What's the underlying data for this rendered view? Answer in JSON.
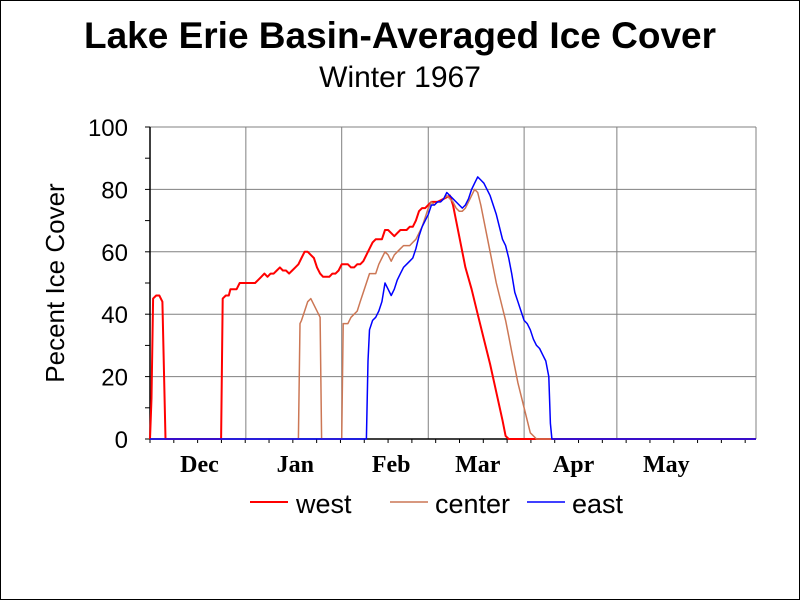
{
  "chart_data": {
    "type": "line",
    "title": "Lake Erie Basin-Averaged Ice Cover",
    "subtitle": "Winter 1967",
    "ylabel": "Pecent Ice Cover",
    "xlabel": "",
    "ylim": [
      0,
      100
    ],
    "yticks": [
      0,
      20,
      40,
      60,
      80,
      100
    ],
    "x_start": "Nov 15",
    "xlim": [
      0,
      196
    ],
    "xticks": [
      {
        "label": "Dec",
        "x": 16
      },
      {
        "label": "Jan",
        "x": 47
      },
      {
        "label": "Feb",
        "x": 78
      },
      {
        "label": "Mar",
        "x": 106
      },
      {
        "label": "Apr",
        "x": 137
      },
      {
        "label": "May",
        "x": 167
      }
    ],
    "grid": true,
    "legend_position": "bottom",
    "series": [
      {
        "name": "west",
        "color": "#ff0000",
        "points": [
          [
            0,
            0
          ],
          [
            0.5,
            13
          ],
          [
            1,
            45
          ],
          [
            2,
            46
          ],
          [
            3,
            46
          ],
          [
            4,
            44
          ],
          [
            5,
            0
          ],
          [
            23,
            0
          ],
          [
            23.5,
            45
          ],
          [
            24.5,
            46
          ],
          [
            25.5,
            46
          ],
          [
            26,
            48
          ],
          [
            28,
            48
          ],
          [
            29,
            50
          ],
          [
            34,
            50
          ],
          [
            35,
            51
          ],
          [
            36,
            52
          ],
          [
            37,
            53
          ],
          [
            38,
            52
          ],
          [
            39,
            53
          ],
          [
            40,
            53
          ],
          [
            41,
            54
          ],
          [
            42,
            55
          ],
          [
            43,
            54
          ],
          [
            44,
            54
          ],
          [
            45,
            53
          ],
          [
            46,
            54
          ],
          [
            47,
            55
          ],
          [
            48,
            56
          ],
          [
            49,
            58
          ],
          [
            50,
            60
          ],
          [
            51,
            60
          ],
          [
            52,
            59
          ],
          [
            53,
            58
          ],
          [
            54,
            55
          ],
          [
            55,
            53
          ],
          [
            56,
            52
          ],
          [
            58,
            52
          ],
          [
            59,
            53
          ],
          [
            60,
            53
          ],
          [
            61,
            54
          ],
          [
            62,
            56
          ],
          [
            64,
            56
          ],
          [
            65,
            55
          ],
          [
            66,
            55
          ],
          [
            67,
            56
          ],
          [
            68,
            56
          ],
          [
            69,
            57
          ],
          [
            70,
            59
          ],
          [
            71,
            61
          ],
          [
            72,
            63
          ],
          [
            73,
            64
          ],
          [
            75,
            64
          ],
          [
            76,
            67
          ],
          [
            77,
            67
          ],
          [
            78,
            66
          ],
          [
            79,
            65
          ],
          [
            80,
            66
          ],
          [
            81,
            67
          ],
          [
            83,
            67
          ],
          [
            84,
            68
          ],
          [
            85,
            68
          ],
          [
            86,
            70
          ],
          [
            87,
            73
          ],
          [
            88,
            74
          ],
          [
            89,
            74
          ],
          [
            90,
            75
          ],
          [
            91,
            76
          ],
          [
            93,
            76
          ],
          [
            95,
            77
          ],
          [
            97,
            78
          ],
          [
            98,
            75
          ],
          [
            99,
            70
          ],
          [
            100,
            65
          ],
          [
            101,
            60
          ],
          [
            102,
            55
          ],
          [
            104,
            48
          ],
          [
            106,
            40
          ],
          [
            108,
            32
          ],
          [
            110,
            24
          ],
          [
            112,
            15
          ],
          [
            114,
            6
          ],
          [
            115,
            1
          ],
          [
            116,
            0
          ],
          [
            196,
            0
          ]
        ]
      },
      {
        "name": "center",
        "color": "#cc7755",
        "points": [
          [
            0,
            0
          ],
          [
            48,
            0
          ],
          [
            48.5,
            37
          ],
          [
            49,
            38
          ],
          [
            50,
            41
          ],
          [
            51,
            44
          ],
          [
            52,
            45
          ],
          [
            53,
            43
          ],
          [
            54,
            41
          ],
          [
            55,
            39
          ],
          [
            55.5,
            0
          ],
          [
            62,
            0
          ],
          [
            62.5,
            37
          ],
          [
            63,
            37
          ],
          [
            64,
            37
          ],
          [
            65,
            39
          ],
          [
            66,
            40
          ],
          [
            67,
            41
          ],
          [
            68,
            44
          ],
          [
            69,
            47
          ],
          [
            70,
            50
          ],
          [
            71,
            53
          ],
          [
            73,
            53
          ],
          [
            74,
            56
          ],
          [
            75,
            58
          ],
          [
            76,
            60
          ],
          [
            77,
            59
          ],
          [
            78,
            57
          ],
          [
            79,
            59
          ],
          [
            80,
            60
          ],
          [
            81,
            61
          ],
          [
            82,
            62
          ],
          [
            84,
            62
          ],
          [
            85,
            63
          ],
          [
            86,
            64
          ],
          [
            87,
            66
          ],
          [
            88,
            68
          ],
          [
            89,
            71
          ],
          [
            90,
            74
          ],
          [
            91,
            76
          ],
          [
            92,
            75
          ],
          [
            93,
            76
          ],
          [
            94,
            76
          ],
          [
            95,
            77
          ],
          [
            96,
            78
          ],
          [
            97,
            77
          ],
          [
            98,
            76
          ],
          [
            99,
            74
          ],
          [
            100,
            73
          ],
          [
            101,
            73
          ],
          [
            102,
            74
          ],
          [
            103,
            76
          ],
          [
            104,
            78
          ],
          [
            105,
            80
          ],
          [
            106,
            79
          ],
          [
            107,
            75
          ],
          [
            108,
            70
          ],
          [
            109,
            65
          ],
          [
            110,
            60
          ],
          [
            111,
            55
          ],
          [
            112,
            50
          ],
          [
            113,
            46
          ],
          [
            114,
            42
          ],
          [
            115,
            38
          ],
          [
            116,
            33
          ],
          [
            117,
            28
          ],
          [
            118,
            23
          ],
          [
            119,
            18
          ],
          [
            120,
            14
          ],
          [
            121,
            10
          ],
          [
            122,
            6
          ],
          [
            123,
            2
          ],
          [
            124,
            1
          ],
          [
            125,
            0
          ],
          [
            196,
            0
          ]
        ]
      },
      {
        "name": "east",
        "color": "#0000ff",
        "points": [
          [
            0,
            0
          ],
          [
            70,
            0
          ],
          [
            70.5,
            25
          ],
          [
            71,
            35
          ],
          [
            72,
            38
          ],
          [
            73,
            39
          ],
          [
            74,
            41
          ],
          [
            75,
            44
          ],
          [
            76,
            50
          ],
          [
            77,
            48
          ],
          [
            78,
            46
          ],
          [
            79,
            48
          ],
          [
            80,
            51
          ],
          [
            81,
            53
          ],
          [
            82,
            55
          ],
          [
            83,
            56
          ],
          [
            84,
            57
          ],
          [
            85,
            58
          ],
          [
            86,
            61
          ],
          [
            87,
            65
          ],
          [
            88,
            68
          ],
          [
            89,
            70
          ],
          [
            90,
            72
          ],
          [
            91,
            75
          ],
          [
            92,
            75
          ],
          [
            93,
            76
          ],
          [
            94,
            76
          ],
          [
            95,
            77
          ],
          [
            96,
            79
          ],
          [
            97,
            78
          ],
          [
            98,
            77
          ],
          [
            99,
            76
          ],
          [
            100,
            75
          ],
          [
            101,
            74
          ],
          [
            102,
            75
          ],
          [
            103,
            77
          ],
          [
            104,
            80
          ],
          [
            105,
            82
          ],
          [
            106,
            84
          ],
          [
            107,
            83
          ],
          [
            108,
            82
          ],
          [
            109,
            80
          ],
          [
            110,
            78
          ],
          [
            111,
            75
          ],
          [
            112,
            72
          ],
          [
            113,
            68
          ],
          [
            114,
            64
          ],
          [
            115,
            62
          ],
          [
            116,
            58
          ],
          [
            117,
            53
          ],
          [
            118,
            47
          ],
          [
            119,
            44
          ],
          [
            120,
            41
          ],
          [
            121,
            38
          ],
          [
            122,
            37
          ],
          [
            123,
            35
          ],
          [
            124,
            32
          ],
          [
            125,
            30
          ],
          [
            126,
            29
          ],
          [
            127,
            27
          ],
          [
            128,
            25
          ],
          [
            129,
            20
          ],
          [
            129.5,
            5
          ],
          [
            130,
            0
          ],
          [
            196,
            0
          ]
        ]
      }
    ]
  }
}
